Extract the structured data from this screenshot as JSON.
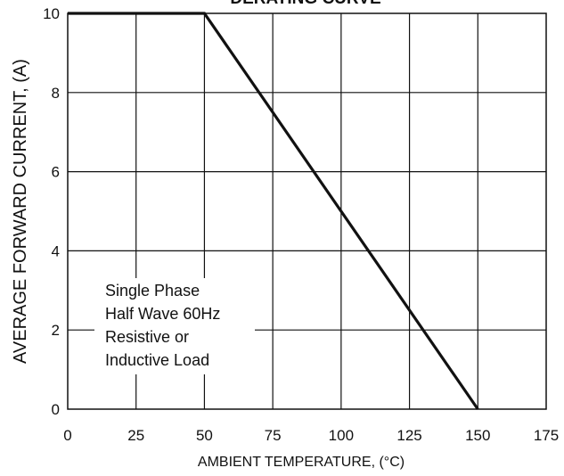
{
  "chart_data": {
    "type": "line",
    "title": "DERATING CURVE",
    "xlabel": "AMBIENT TEMPERATURE, (°C)",
    "ylabel": "AVERAGE FORWARD CURRENT, (A)",
    "xlim": [
      0,
      175
    ],
    "ylim": [
      0,
      10
    ],
    "xticks": [
      0,
      25,
      50,
      75,
      100,
      125,
      150,
      175
    ],
    "yticks": [
      0,
      2,
      4,
      6,
      8,
      10
    ],
    "grid": true,
    "series": [
      {
        "x": [
          0,
          50,
          150
        ],
        "y": [
          10,
          10,
          0
        ]
      }
    ],
    "annotation": [
      "Single Phase",
      "Half Wave 60Hz",
      "Resistive or",
      "Inductive Load"
    ]
  }
}
